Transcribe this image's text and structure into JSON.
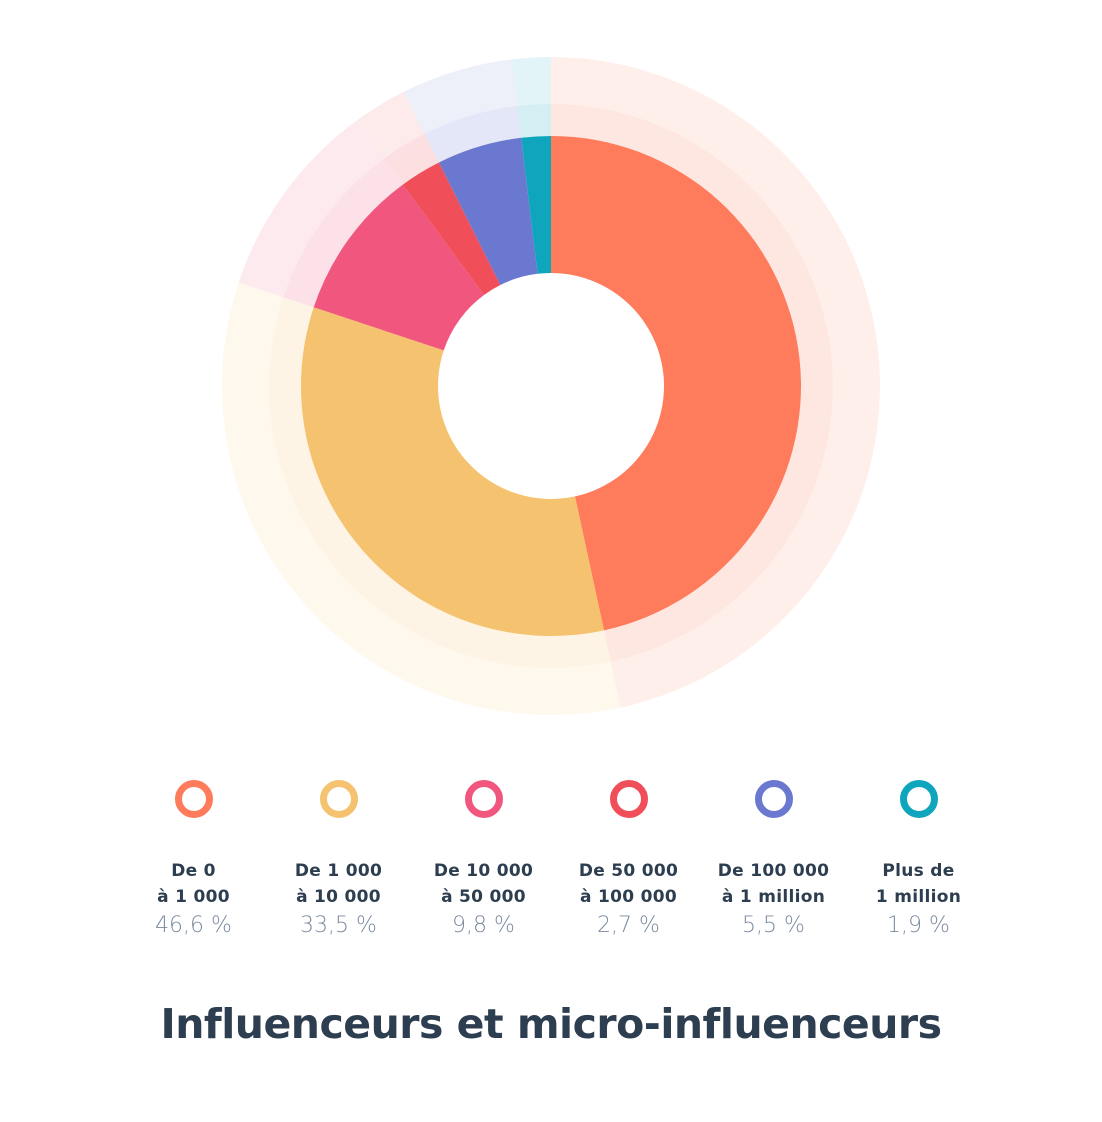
{
  "chart_data": {
    "type": "pie",
    "title": "Influenceurs et micro-influenceurs",
    "categories": [
      [
        "De 0",
        "à 1 000"
      ],
      [
        "De 1 000",
        "à 10 000"
      ],
      [
        "De 10 000",
        "à 50 000"
      ],
      [
        "De 50 000",
        "à 100 000"
      ],
      [
        "De 100 000",
        "à 1 million"
      ],
      [
        "Plus de",
        "1 million"
      ]
    ],
    "values": [
      46.6,
      33.5,
      9.8,
      2.7,
      5.5,
      1.9
    ],
    "value_labels": [
      "46,6 %",
      "33,5 %",
      "9,8 %",
      "2,7 %",
      "5,5 %",
      "1,9 %"
    ],
    "colors": [
      "#fe7b5b",
      "#f5c26f",
      "#f1567e",
      "#f04f59",
      "#6b78d0",
      "#0ea5bd"
    ],
    "style": "donut with translucent outer halo rings",
    "legend_position": "bottom"
  }
}
